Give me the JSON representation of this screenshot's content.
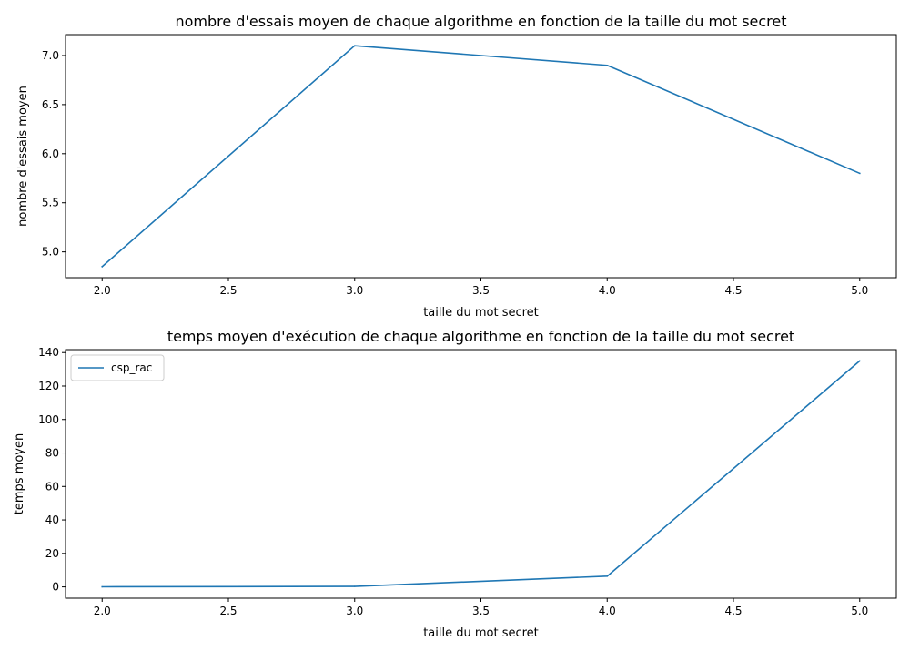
{
  "chart_data": [
    {
      "type": "line",
      "title": "nombre d'essais moyen de chaque algorithme en fonction de la taille du mot secret",
      "xlabel": "taille du mot secret",
      "ylabel": "nombre d'essais moyen",
      "xlim": [
        1.855,
        5.145
      ],
      "ylim": [
        4.737,
        7.213
      ],
      "xticks": [
        "2.0",
        "2.5",
        "3.0",
        "3.5",
        "4.0",
        "4.5",
        "5.0"
      ],
      "yticks": [
        "5.0",
        "5.5",
        "6.0",
        "6.5",
        "7.0"
      ],
      "grid": false,
      "color": "#1f77b4",
      "series": [
        {
          "x": [
            2,
            3,
            4,
            5
          ],
          "values": [
            4.85,
            7.1,
            6.9,
            5.8
          ]
        }
      ]
    },
    {
      "type": "line",
      "title": "temps moyen d'exécution de chaque algorithme en fonction de la taille du mot secret",
      "xlabel": "taille du mot secret",
      "ylabel": "temps moyen",
      "xlim": [
        1.855,
        5.145
      ],
      "ylim": [
        -6.75,
        141.75
      ],
      "xticks": [
        "2.0",
        "2.5",
        "3.0",
        "3.5",
        "4.0",
        "4.5",
        "5.0"
      ],
      "yticks": [
        "0",
        "20",
        "40",
        "60",
        "80",
        "100",
        "120",
        "140"
      ],
      "grid": false,
      "legend": "top-left",
      "color": "#1f77b4",
      "series": [
        {
          "name": "csp_rac",
          "x": [
            2,
            3,
            4,
            5
          ],
          "values": [
            0.05,
            0.3,
            6.4,
            135
          ]
        }
      ]
    }
  ]
}
